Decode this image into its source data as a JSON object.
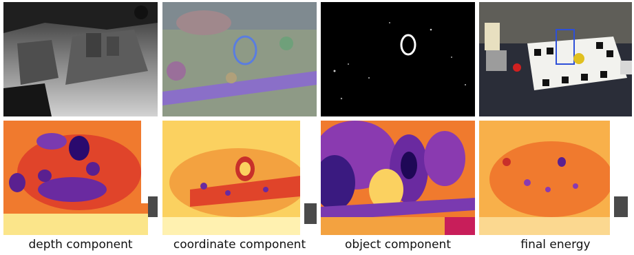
{
  "figure": {
    "captions": [
      "depth component",
      "coordinate component",
      "object component",
      "final energy"
    ]
  },
  "colors": {
    "heat_low": "#2a0a6e",
    "heat_mid": "#e0442a",
    "heat_high": "#fff7c8",
    "depth_dark": "#1a1a1a",
    "depth_light": "#d4d4d4",
    "marker_blue": "#2d4fd8"
  }
}
